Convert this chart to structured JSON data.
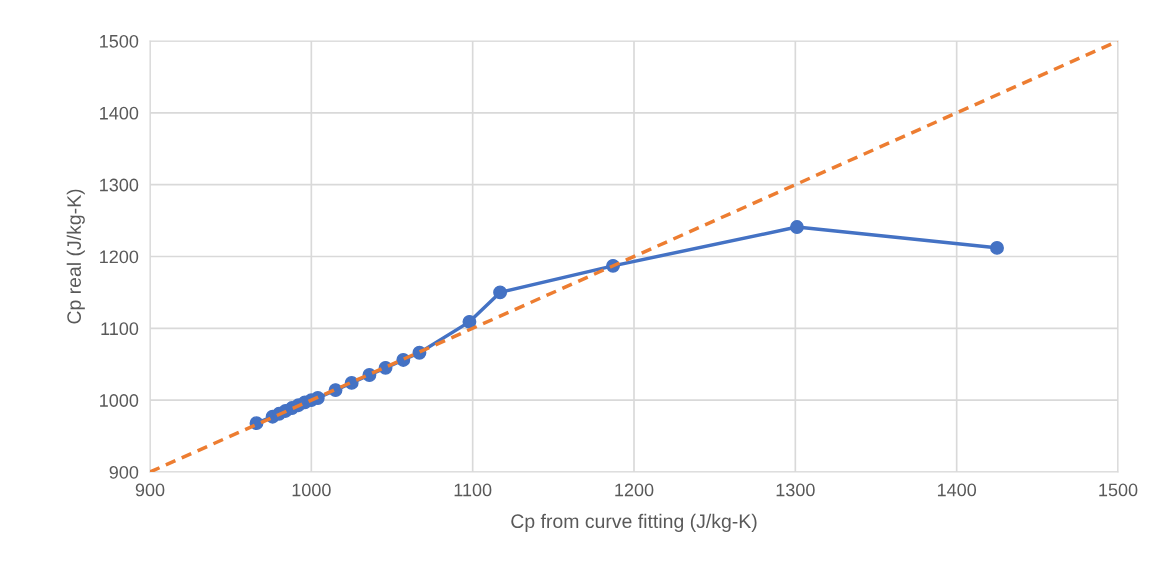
{
  "chart_data": {
    "type": "line",
    "xlabel": "Cp from curve fitting (J/kg-K)",
    "ylabel": "Cp real (J/kg-K)",
    "series": [
      {
        "color": "#4472c4",
        "marker": "circle",
        "line_style": "solid",
        "x": [
          966,
          976,
          980,
          984,
          988,
          992,
          996,
          1000,
          1004,
          1015,
          1025,
          1036,
          1046,
          1057,
          1067,
          1098,
          1117,
          1187,
          1301,
          1425
        ],
        "values": [
          968,
          977,
          981,
          985,
          989,
          993,
          997,
          1000,
          1003,
          1014,
          1024,
          1035,
          1045,
          1056,
          1066,
          1109,
          1150,
          1187,
          1241,
          1212
        ]
      },
      {
        "color": "#ed7d31",
        "marker": "none",
        "line_style": "dashed",
        "x": [
          900,
          1500
        ],
        "values": [
          900,
          1500
        ]
      }
    ],
    "xlim": [
      900,
      1500
    ],
    "xticks": [
      900,
      1000,
      1100,
      1200,
      1300,
      1400,
      1500
    ],
    "ylim": [
      900,
      1500
    ],
    "yticks": [
      900,
      1000,
      1100,
      1200,
      1300,
      1400,
      1500
    ],
    "grid": true
  }
}
